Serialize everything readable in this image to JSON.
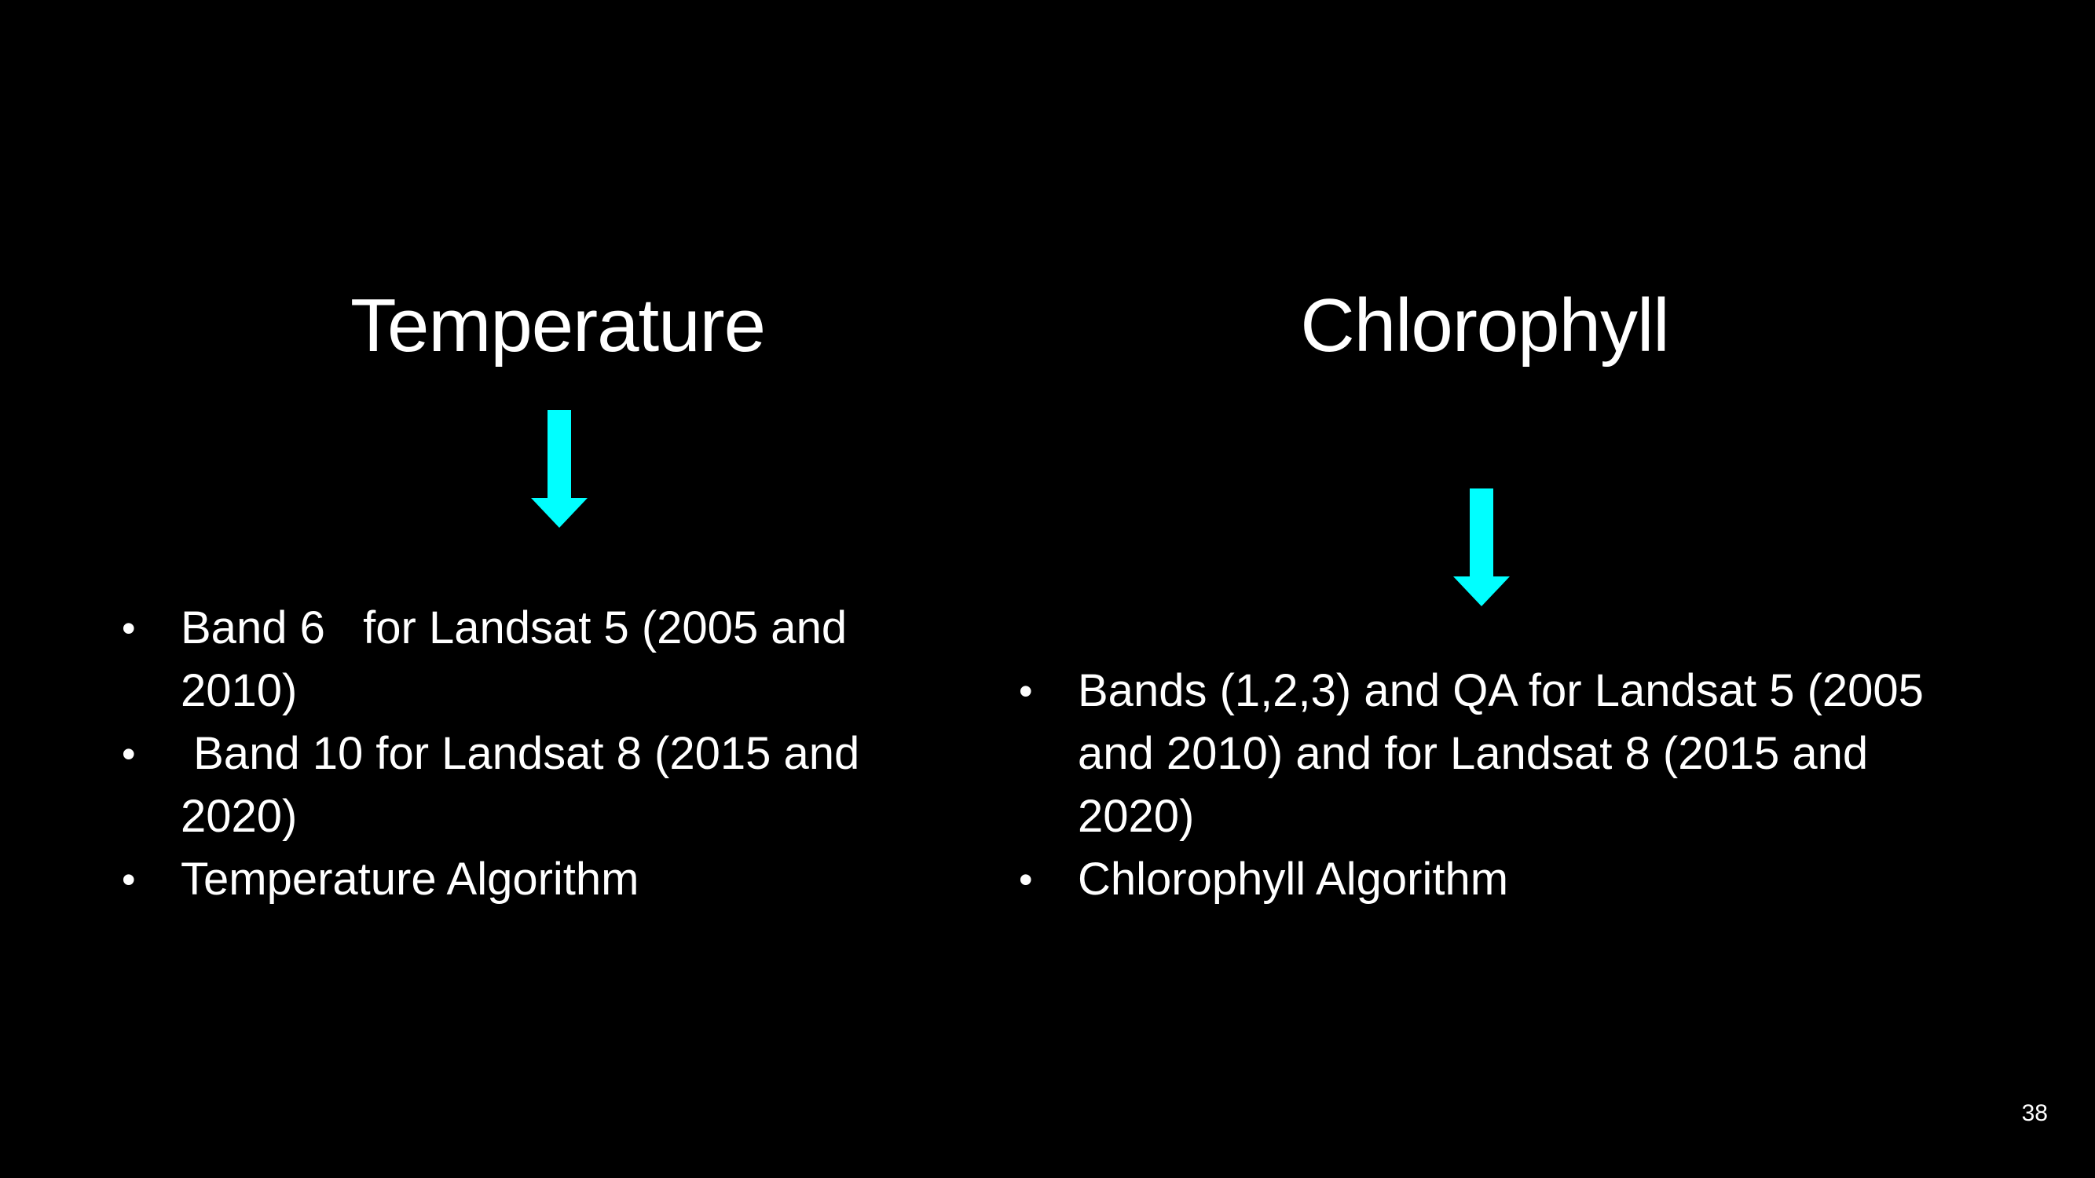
{
  "left_column": {
    "title": "Temperature",
    "bullets": [
      "Band 6   for Landsat 5 (2005 and 2010)",
      " Band 10 for Landsat 8 (2015 and 2020)",
      "Temperature Algorithm"
    ]
  },
  "right_column": {
    "title": "Chlorophyll",
    "bullets": [
      "Bands (1,2,3) and QA for Landsat 5 (2005 and 2010) and for Landsat 8 (2015 and 2020)",
      "Chlorophyll Algorithm"
    ]
  },
  "bullet_symbol": "•",
  "arrow_icon": "down-arrow-icon",
  "arrow_color": "#00FFFF",
  "background_color": "#000000",
  "text_color": "#FFFFFF",
  "page_number": "38"
}
